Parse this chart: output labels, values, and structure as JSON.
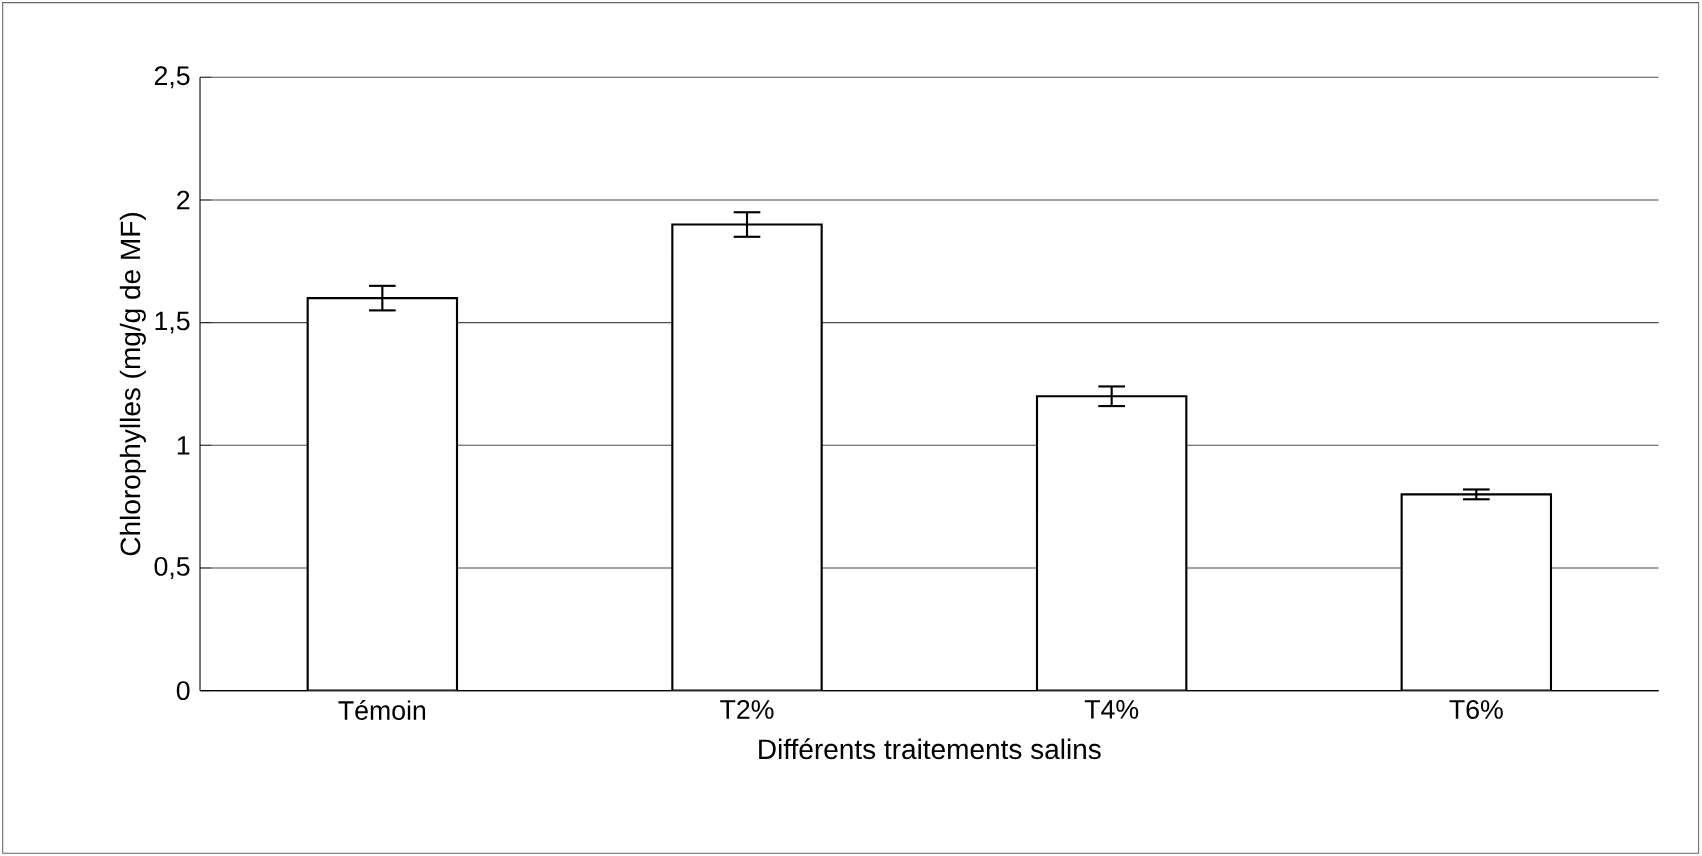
{
  "chart_data": {
    "type": "bar",
    "categories": [
      "Témoin",
      "T2%",
      "T4%",
      "T6%"
    ],
    "values": [
      1.6,
      1.9,
      1.2,
      0.8
    ],
    "errors": [
      0.05,
      0.05,
      0.04,
      0.02
    ],
    "color": "#000000",
    "xlabel": "Différents traitements salins",
    "ylabel": "Chlorophylles (mg/g de MF)",
    "ylim": [
      0,
      2.5
    ],
    "yticks": [
      0,
      {
        "value": 0.5,
        "label": "0,5"
      },
      1,
      {
        "value": 1.5,
        "label": "1,5"
      },
      2,
      {
        "value": 2.5,
        "label": "2,5"
      }
    ],
    "grid": "y"
  }
}
